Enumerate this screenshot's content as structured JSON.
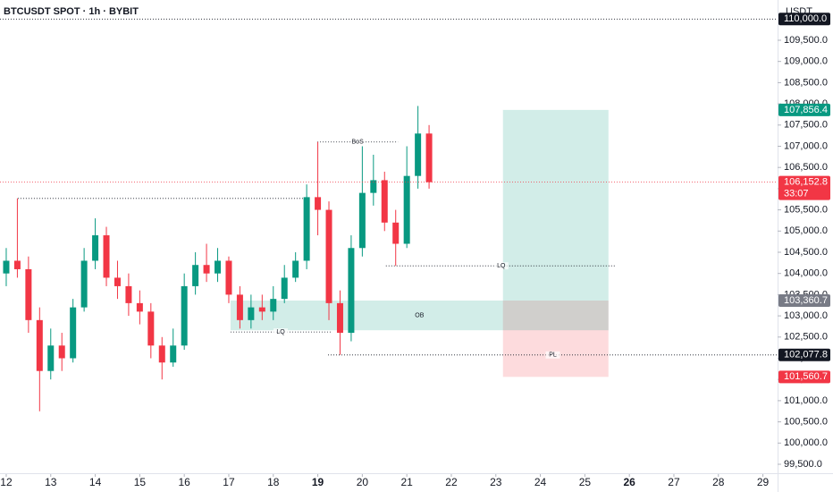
{
  "chart_data": {
    "type": "candlestick",
    "title": "BTCUSDT SPOT · 1h · BYBIT",
    "y_axis_label": "USDT",
    "x": [
      12,
      12.25,
      12.5,
      12.75,
      13,
      13.25,
      13.5,
      13.75,
      14,
      14.25,
      14.5,
      14.75,
      15,
      15.25,
      15.5,
      15.75,
      16,
      16.25,
      16.5,
      16.75,
      17,
      17.25,
      17.5,
      17.75,
      18,
      18.25,
      18.5,
      18.75,
      19,
      19.25,
      19.5,
      19.75,
      20,
      20.25,
      20.5,
      20.75,
      21,
      21.25,
      21.5
    ],
    "open": [
      104000,
      104300,
      104100,
      102900,
      101700,
      102300,
      102000,
      103200,
      104300,
      104900,
      103900,
      103700,
      103300,
      103100,
      102300,
      101900,
      102300,
      103700,
      104200,
      104000,
      104300,
      103500,
      102900,
      103200,
      103100,
      103400,
      103900,
      104300,
      105800,
      105500,
      103300,
      102600,
      104600,
      105900,
      106200,
      105200,
      104700,
      106300,
      107300
    ],
    "high": [
      104600,
      105770,
      104400,
      103200,
      102700,
      102600,
      103400,
      104600,
      105300,
      105100,
      104300,
      104000,
      103600,
      103300,
      102500,
      102700,
      104000,
      104500,
      104700,
      104600,
      104400,
      103700,
      103500,
      103500,
      103700,
      104200,
      104500,
      106100,
      107100,
      105700,
      103600,
      104900,
      107000,
      106800,
      106400,
      105500,
      107000,
      107950,
      107500
    ],
    "low": [
      103700,
      103900,
      102600,
      100750,
      101500,
      101700,
      101900,
      103100,
      104100,
      103700,
      103400,
      103000,
      102800,
      102000,
      101500,
      101800,
      102200,
      103500,
      103800,
      103800,
      103300,
      102700,
      102700,
      102900,
      102900,
      103300,
      103800,
      104100,
      104900,
      102900,
      102080,
      102400,
      104400,
      105600,
      105000,
      104180,
      104600,
      106000,
      106000
    ],
    "close": [
      104300,
      104100,
      102900,
      101700,
      102300,
      102000,
      103200,
      104300,
      104900,
      103900,
      103700,
      103300,
      103100,
      102300,
      101900,
      102300,
      103700,
      104200,
      104000,
      104300,
      103500,
      102900,
      103200,
      103100,
      103400,
      103900,
      104300,
      105800,
      105500,
      103300,
      102600,
      104600,
      105900,
      106200,
      105200,
      104700,
      106300,
      107300,
      106152.8
    ],
    "up_color": "#089981",
    "down_color": "#f23645",
    "xlim": [
      11.86,
      29.33
    ],
    "ylim": [
      99268,
      109985
    ],
    "xticks": [
      12,
      13,
      14,
      15,
      16,
      17,
      18,
      19,
      20,
      21,
      22,
      23,
      24,
      25,
      26,
      27,
      28,
      29
    ],
    "xticks_bold": [
      19,
      26
    ],
    "yticks": [
      {
        "value": 99500,
        "label": "99,500.0"
      },
      {
        "value": 100000,
        "label": "100,000.0"
      },
      {
        "value": 100500,
        "label": "100,500.0"
      },
      {
        "value": 101000,
        "label": "101,000.0"
      },
      {
        "value": 101500,
        "label": "101,500.0"
      },
      {
        "value": 102000,
        "label": "102,000.0"
      },
      {
        "value": 102500,
        "label": "102,500.0"
      },
      {
        "value": 103000,
        "label": "103,000.0"
      },
      {
        "value": 103500,
        "label": "103,500.0"
      },
      {
        "value": 104000,
        "label": "104,000.0"
      },
      {
        "value": 104500,
        "label": "104,500.0"
      },
      {
        "value": 105000,
        "label": "105,000.0"
      },
      {
        "value": 105500,
        "label": "105,500.0"
      },
      {
        "value": 106000,
        "label": "106,000.0"
      },
      {
        "value": 106500,
        "label": "106,500.0"
      },
      {
        "value": 107000,
        "label": "107,000.0"
      },
      {
        "value": 107500,
        "label": "107,500.0"
      },
      {
        "value": 108000,
        "label": "108,000.0"
      },
      {
        "value": 108500,
        "label": "108,500.0"
      },
      {
        "value": 109000,
        "label": "109,000.0"
      },
      {
        "value": 109500,
        "label": "109,500.0"
      }
    ],
    "levels": [
      {
        "label": "BoS",
        "price": 107100,
        "x": [
          18.99,
          20.8
        ]
      },
      {
        "price": 105770,
        "x": [
          12.26,
          18.69
        ]
      },
      {
        "label": "LQ",
        "price": 104180,
        "x": [
          20.53,
          25.71
        ]
      },
      {
        "label": "LQ",
        "price": 102620,
        "x": [
          17.04,
          19.29
        ]
      },
      {
        "label": "PL",
        "price": 102077.8,
        "x": [
          19.23,
          29.33
        ]
      }
    ],
    "zones": [
      {
        "label": "OB",
        "top": 103360.7,
        "bottom": 102660,
        "x": [
          17.04,
          25.53
        ],
        "color": "#089981"
      }
    ],
    "position": {
      "x": [
        23.16,
        25.53
      ],
      "target": 107856.4,
      "entry": 103360.7,
      "stop": 101560.7,
      "profit_color": "#089981",
      "loss_color": "#f23645"
    },
    "price_labels": [
      {
        "value": 110000,
        "label": "110,000.0",
        "color": "#131722"
      },
      {
        "value": 107856.4,
        "label": "107,856.4",
        "color": "#089981"
      },
      {
        "value": 106152.8,
        "label": "106,152.8",
        "color": "#f23645",
        "countdown": "33:07"
      },
      {
        "value": 103360.7,
        "label": "103,360.7",
        "color": "#787b86"
      },
      {
        "value": 102077.8,
        "label": "102,077.8",
        "color": "#131722"
      },
      {
        "value": 101560.7,
        "label": "101,560.7",
        "color": "#f23645"
      }
    ]
  }
}
